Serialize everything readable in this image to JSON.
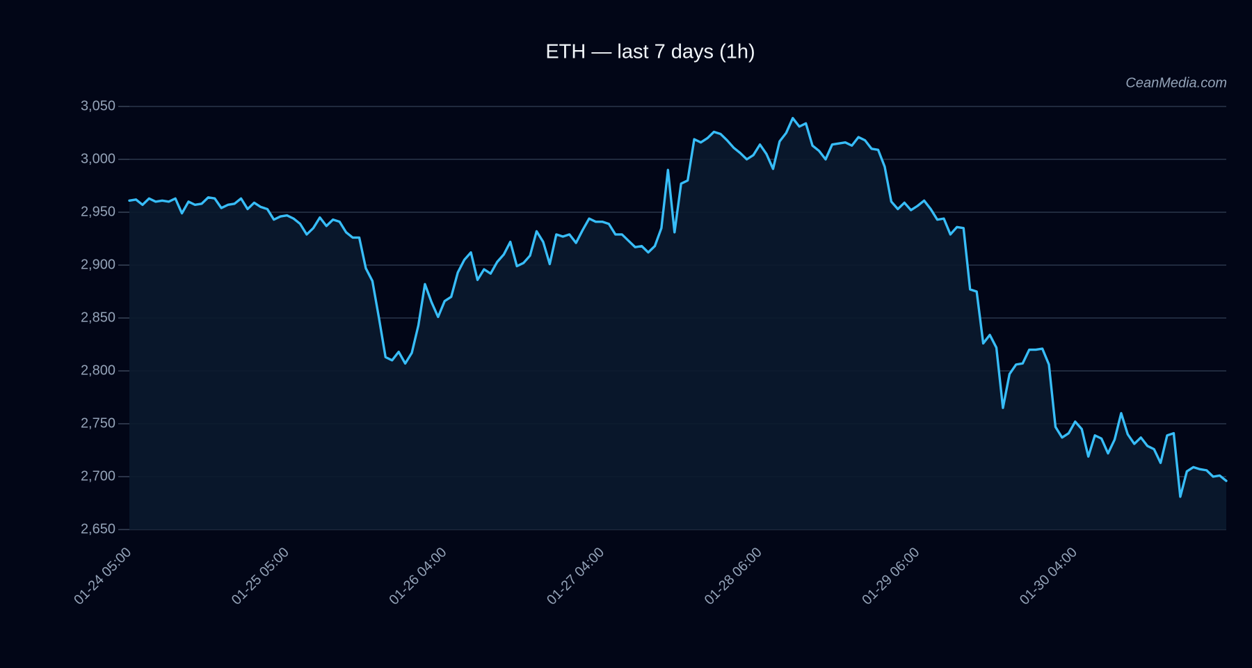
{
  "chart_data": {
    "type": "line",
    "title": "ETH — last 7 days (1h)",
    "watermark": "CeanMedia.com",
    "categories": [
      "01-24 05:00",
      null,
      null,
      null,
      null,
      null,
      null,
      null,
      null,
      null,
      null,
      null,
      null,
      null,
      null,
      null,
      null,
      null,
      null,
      null,
      null,
      null,
      null,
      null,
      "01-25 05:00",
      null,
      null,
      null,
      null,
      null,
      null,
      null,
      null,
      null,
      null,
      null,
      null,
      null,
      null,
      null,
      null,
      null,
      null,
      null,
      null,
      null,
      null,
      null,
      "01-26 04:00",
      null,
      null,
      null,
      null,
      null,
      null,
      null,
      null,
      null,
      null,
      null,
      null,
      null,
      null,
      null,
      null,
      null,
      null,
      null,
      null,
      null,
      null,
      null,
      "01-27 04:00",
      null,
      null,
      null,
      null,
      null,
      null,
      null,
      null,
      null,
      null,
      null,
      null,
      null,
      null,
      null,
      null,
      null,
      null,
      null,
      null,
      null,
      null,
      null,
      "01-28 06:00",
      null,
      null,
      null,
      null,
      null,
      null,
      null,
      null,
      null,
      null,
      null,
      null,
      null,
      null,
      null,
      null,
      null,
      null,
      null,
      null,
      null,
      null,
      null,
      "01-29 06:00",
      null,
      null,
      null,
      null,
      null,
      null,
      null,
      null,
      null,
      null,
      null,
      null,
      null,
      null,
      null,
      null,
      null,
      null,
      null,
      null,
      null,
      null,
      null,
      "01-30 04:00",
      null,
      null,
      null,
      null,
      null,
      null,
      null,
      null,
      null,
      null,
      null,
      null,
      null,
      null,
      null,
      null,
      null,
      null,
      null,
      null,
      null,
      null,
      null
    ],
    "series": [
      {
        "color": "#38bdf8",
        "values": [
          2961,
          2962,
          2957,
          2963,
          2960,
          2961,
          2960,
          2963,
          2949,
          2960,
          2957,
          2958,
          2964,
          2963,
          2954,
          2957,
          2958,
          2963,
          2953,
          2959,
          2955,
          2953,
          2943,
          2946,
          2947,
          2944,
          2939,
          2929,
          2935,
          2945,
          2937,
          2943,
          2941,
          2931,
          2926,
          2926,
          2897,
          2885,
          2850,
          2813,
          2810,
          2818,
          2807,
          2817,
          2843,
          2882,
          2865,
          2851,
          2866,
          2870,
          2893,
          2905,
          2912,
          2886,
          2896,
          2892,
          2903,
          2910,
          2922,
          2899,
          2902,
          2909,
          2932,
          2922,
          2901,
          2929,
          2927,
          2929,
          2921,
          2933,
          2944,
          2941,
          2941,
          2939,
          2929,
          2929,
          2923,
          2917,
          2918,
          2912,
          2918,
          2935,
          2990,
          2931,
          2977,
          2980,
          3019,
          3016,
          3020,
          3026,
          3024,
          3018,
          3011,
          3006,
          3000,
          3004,
          3014,
          3005,
          2991,
          3017,
          3025,
          3039,
          3031,
          3034,
          3013,
          3008,
          3000,
          3014,
          3015,
          3016,
          3013,
          3021,
          3018,
          3010,
          3009,
          2993,
          2960,
          2953,
          2959,
          2952,
          2956,
          2961,
          2953,
          2943,
          2944,
          2929,
          2936,
          2935,
          2877,
          2875,
          2826,
          2834,
          2822,
          2765,
          2797,
          2806,
          2807,
          2820,
          2820,
          2821,
          2806,
          2747,
          2737,
          2741,
          2752,
          2745,
          2719,
          2739,
          2736,
          2722,
          2735,
          2760,
          2740,
          2731,
          2737,
          2729,
          2726,
          2713,
          2739,
          2741,
          2681,
          2705,
          2709,
          2707,
          2706,
          2700,
          2701,
          2696
        ]
      }
    ],
    "ylim": [
      2650,
      3050
    ],
    "yticks": [
      {
        "value": 2650,
        "label": "2,650"
      },
      {
        "value": 2700,
        "label": "2,700"
      },
      {
        "value": 2750,
        "label": "2,750"
      },
      {
        "value": 2800,
        "label": "2,800"
      },
      {
        "value": 2850,
        "label": "2,850"
      },
      {
        "value": 2900,
        "label": "2,900"
      },
      {
        "value": 2950,
        "label": "2,950"
      },
      {
        "value": 3000,
        "label": "3,000"
      },
      {
        "value": 3050,
        "label": "3,050"
      }
    ],
    "grid": true
  }
}
